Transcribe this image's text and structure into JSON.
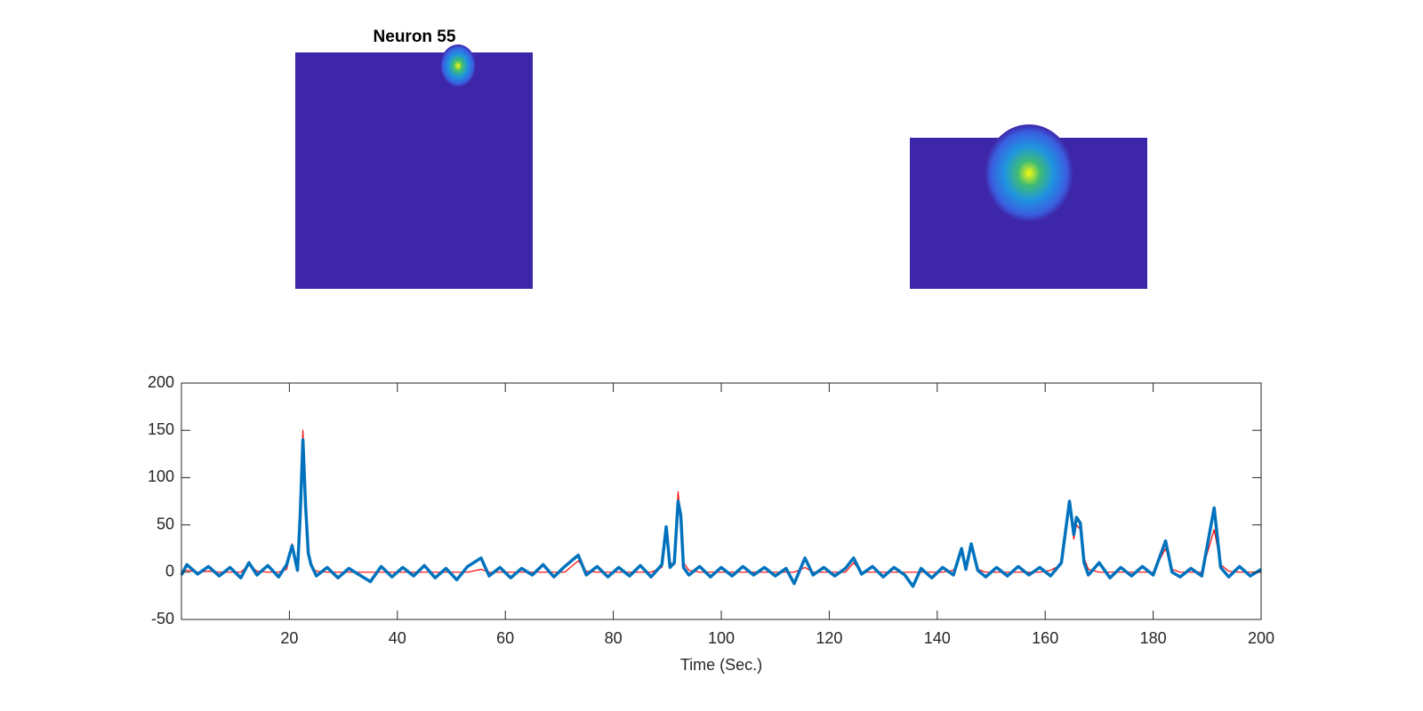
{
  "chart_data": {
    "type": "line",
    "title": "Neuron 55",
    "xlabel": "Time (Sec.)",
    "xlim": [
      0,
      200
    ],
    "xticks": [
      20,
      40,
      60,
      80,
      100,
      120,
      140,
      160,
      180,
      200
    ],
    "ylim": [
      -50,
      200
    ],
    "yticks": [
      -50,
      0,
      50,
      100,
      150,
      200
    ],
    "x": [
      0,
      1,
      3,
      5,
      7,
      9,
      11,
      12.5,
      14,
      16,
      18,
      19.5,
      20.5,
      21.5,
      22,
      22.5,
      23,
      23.5,
      24,
      25,
      27,
      29,
      31,
      33,
      35,
      37,
      39,
      41,
      43,
      45,
      47,
      49,
      51,
      53,
      55.5,
      57,
      59,
      61,
      63,
      65,
      67,
      69,
      71,
      73.5,
      75,
      77,
      79,
      81,
      83,
      85,
      87,
      89,
      89.8,
      90.5,
      91.3,
      92,
      92.5,
      93,
      94,
      96,
      98,
      100,
      102,
      104,
      106,
      108,
      110,
      112,
      113.5,
      115.5,
      117,
      119,
      121,
      123,
      124.5,
      126,
      128,
      130,
      132,
      134,
      135.5,
      137,
      139,
      141,
      143,
      144.5,
      145.3,
      146.3,
      147.5,
      149,
      151,
      153,
      155,
      157,
      159,
      161,
      163,
      164.5,
      165.3,
      165.8,
      166.5,
      167.2,
      168,
      170,
      172,
      174,
      176,
      178,
      180,
      182.3,
      183.5,
      185,
      187,
      189,
      191.3,
      192.5,
      194,
      196,
      198,
      200
    ],
    "series": [
      {
        "color": "#ff0000",
        "values": [
          0,
          2,
          0,
          1,
          0,
          0,
          0,
          8,
          1,
          0,
          0,
          3,
          30,
          5,
          80,
          150,
          60,
          20,
          6,
          1,
          0,
          0,
          0,
          0,
          0,
          0,
          0,
          0,
          0,
          0,
          0,
          0,
          0,
          0,
          3,
          0,
          0,
          0,
          0,
          0,
          0,
          0,
          0,
          12,
          1,
          0,
          0,
          0,
          0,
          0,
          0,
          5,
          40,
          10,
          8,
          85,
          50,
          10,
          2,
          0,
          0,
          0,
          0,
          0,
          0,
          0,
          0,
          0,
          0,
          5,
          0,
          0,
          0,
          0,
          10,
          0,
          0,
          0,
          0,
          0,
          0,
          0,
          0,
          0,
          2,
          20,
          5,
          25,
          3,
          0,
          0,
          0,
          0,
          0,
          0,
          2,
          8,
          70,
          35,
          50,
          45,
          15,
          3,
          0,
          0,
          0,
          0,
          0,
          0,
          25,
          3,
          0,
          0,
          0,
          45,
          8,
          1,
          0,
          0,
          0
        ]
      },
      {
        "color": "#0072bd",
        "values": [
          -3,
          8,
          -2,
          6,
          -4,
          5,
          -6,
          10,
          -3,
          7,
          -5,
          8,
          28,
          2,
          60,
          140,
          70,
          20,
          8,
          -4,
          5,
          -6,
          4,
          -3,
          -10,
          6,
          -5,
          5,
          -4,
          7,
          -6,
          4,
          -8,
          6,
          15,
          -4,
          5,
          -6,
          4,
          -3,
          8,
          -5,
          6,
          18,
          -3,
          6,
          -5,
          5,
          -4,
          7,
          -5,
          8,
          48,
          5,
          10,
          75,
          60,
          5,
          -3,
          6,
          -5,
          5,
          -4,
          6,
          -3,
          5,
          -4,
          4,
          -12,
          15,
          -3,
          5,
          -4,
          4,
          15,
          -2,
          6,
          -5,
          5,
          -3,
          -15,
          4,
          -6,
          5,
          -3,
          25,
          3,
          30,
          2,
          -5,
          5,
          -4,
          6,
          -3,
          5,
          -4,
          10,
          75,
          40,
          58,
          52,
          10,
          -3,
          10,
          -6,
          5,
          -4,
          6,
          -3,
          33,
          0,
          -5,
          4,
          -4,
          68,
          5,
          -5,
          6,
          -4,
          3
        ]
      }
    ]
  }
}
